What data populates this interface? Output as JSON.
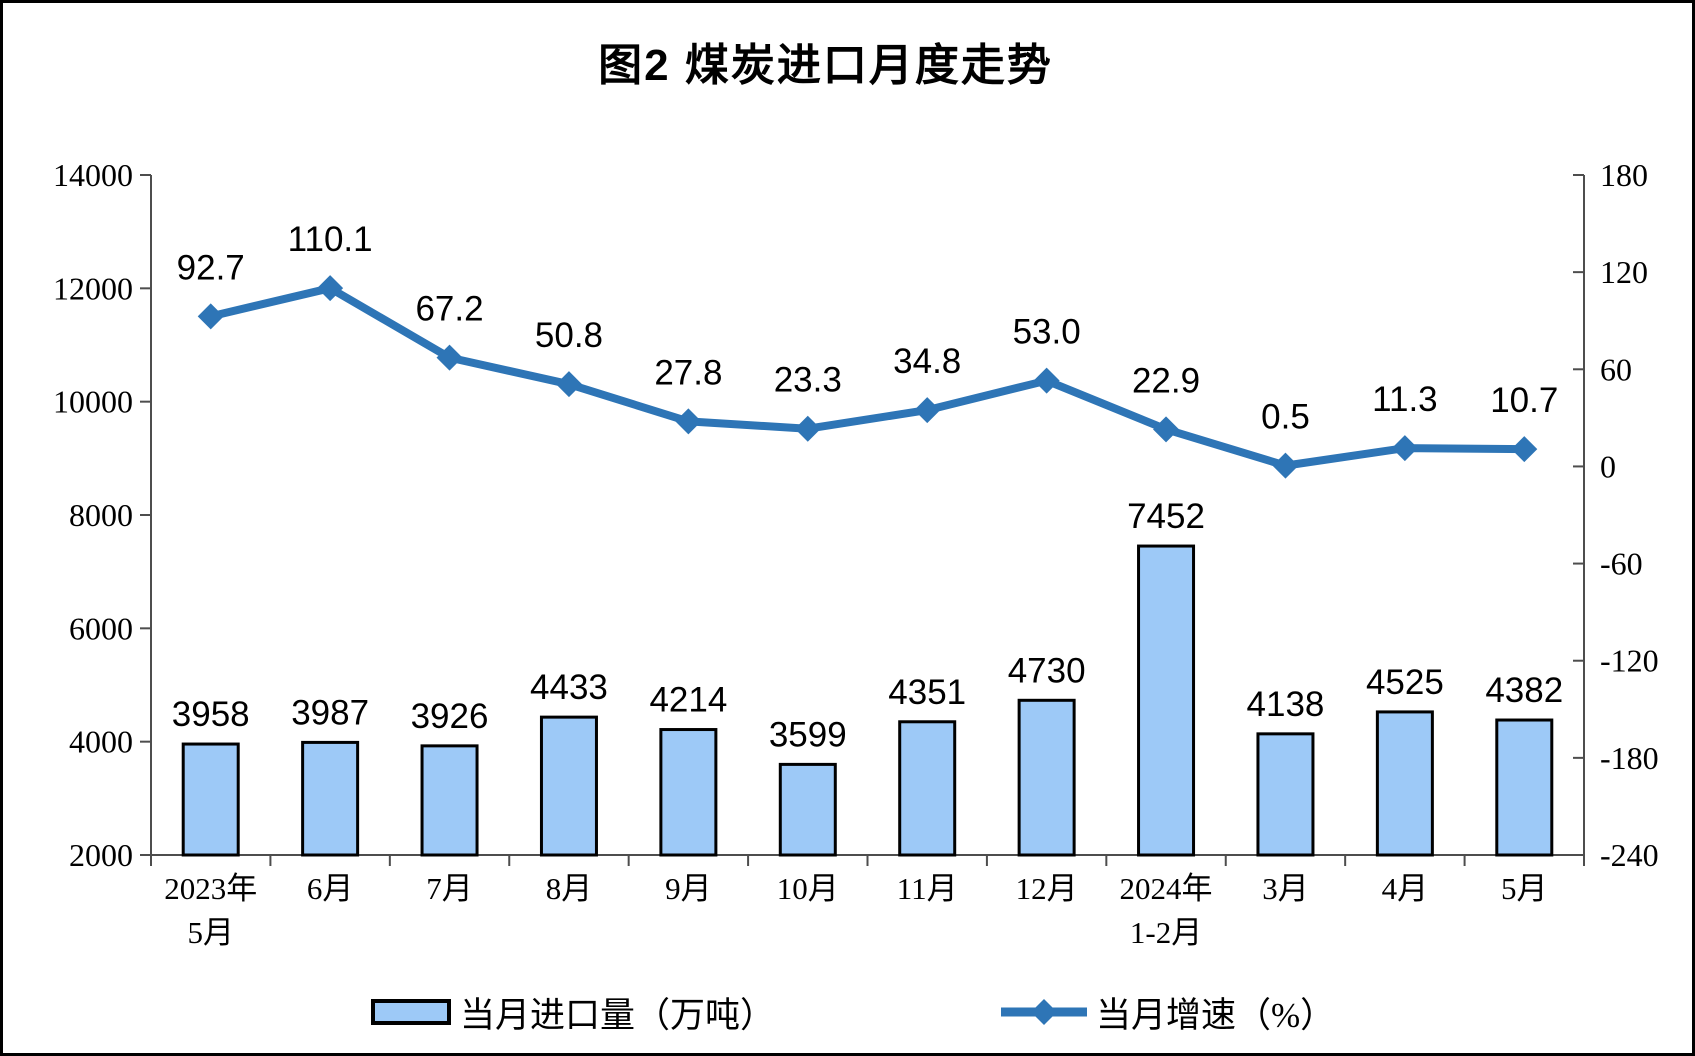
{
  "title": "图2  煤炭进口月度走势",
  "colors": {
    "bar-fill": "#9DC9F7",
    "bar-border": "#000000",
    "line-color": "#2E75B6",
    "axis-color": "#4d4d4d"
  },
  "legend": {
    "items": [
      {
        "label": "当月进口量（万吨）"
      },
      {
        "label": "当月增速（%）"
      }
    ]
  },
  "chart_data": {
    "type": "combo-bar-line",
    "title": "图2  煤炭进口月度走势",
    "categories": [
      [
        "2023年",
        "5月"
      ],
      [
        "6月"
      ],
      [
        "7月"
      ],
      [
        "8月"
      ],
      [
        "9月"
      ],
      [
        "10月"
      ],
      [
        "11月"
      ],
      [
        "12月"
      ],
      [
        "2024年",
        "1-2月"
      ],
      [
        "3月"
      ],
      [
        "4月"
      ],
      [
        "5月"
      ]
    ],
    "series": [
      {
        "name": "当月进口量（万吨）",
        "type": "bar",
        "axis": "left",
        "values": [
          3958,
          3987,
          3926,
          4433,
          4214,
          3599,
          4351,
          4730,
          7452,
          4138,
          4525,
          4382
        ],
        "labels": [
          "3958",
          "3987",
          "3926",
          "4433",
          "4214",
          "3599",
          "4351",
          "4730",
          "7452",
          "4138",
          "4525",
          "4382"
        ]
      },
      {
        "name": "当月增速（%）",
        "type": "line",
        "axis": "right",
        "values": [
          92.7,
          110.1,
          67.2,
          50.8,
          27.8,
          23.3,
          34.8,
          53.0,
          22.9,
          0.5,
          11.3,
          10.7
        ],
        "labels": [
          "92.7",
          "110.1",
          "67.2",
          "50.8",
          "27.8",
          "23.3",
          "34.8",
          "53.0",
          "22.9",
          "0.5",
          "11.3",
          "10.7"
        ]
      }
    ],
    "left_axis": {
      "min": 2000,
      "max": 14000,
      "ticks": [
        2000,
        4000,
        6000,
        8000,
        10000,
        12000,
        14000
      ]
    },
    "right_axis": {
      "min": -240,
      "max": 180,
      "ticks": [
        180,
        120,
        60,
        0,
        -60,
        -120,
        -180,
        -240
      ]
    },
    "grid": false,
    "legend_position": "bottom"
  }
}
